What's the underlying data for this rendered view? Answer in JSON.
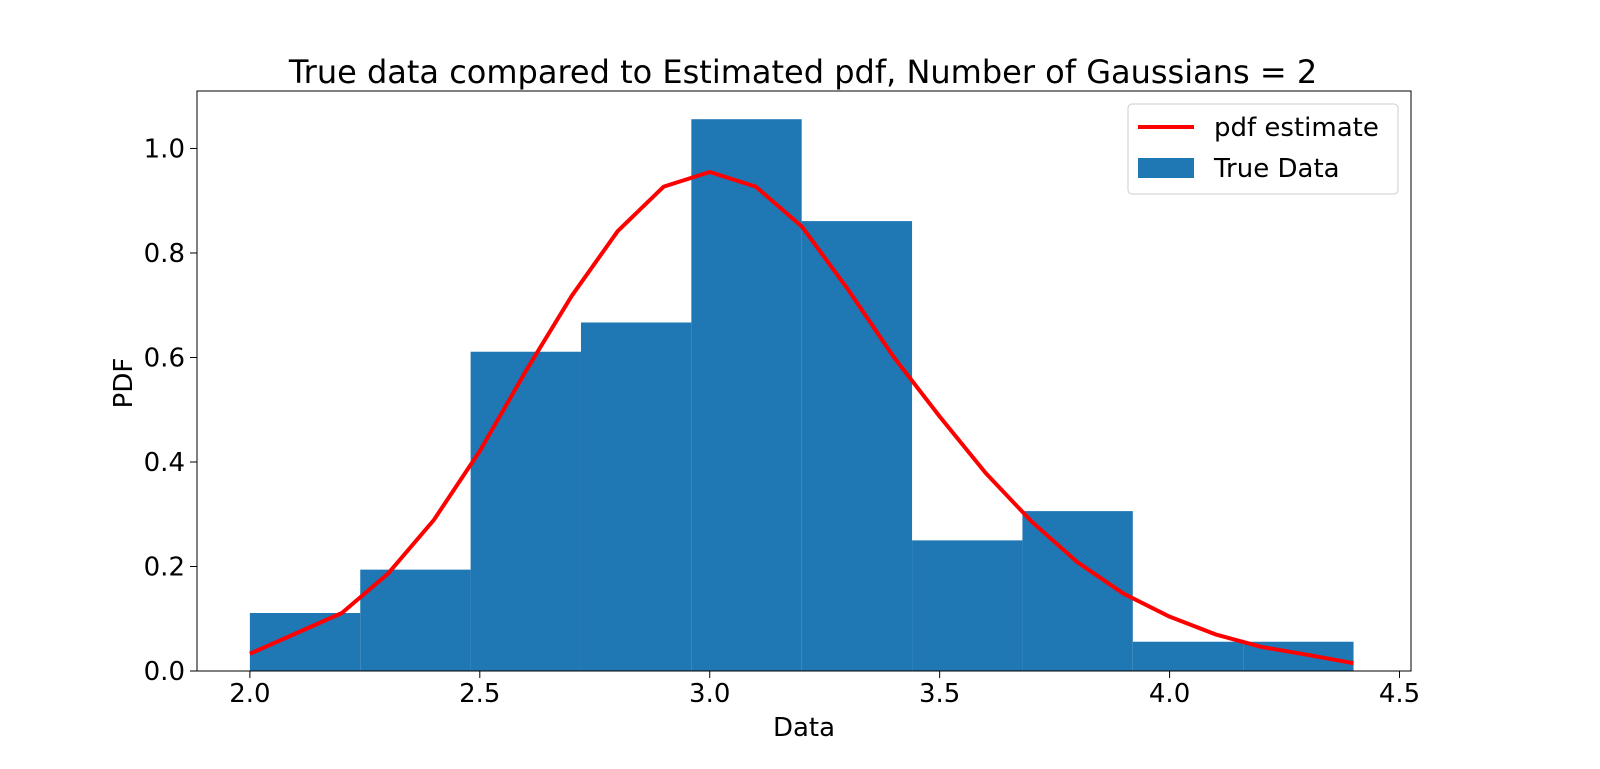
{
  "chart_data": {
    "type": "bar",
    "title": "True data compared to Estimated pdf, Number of Gaussians = 2",
    "xlabel": "Data",
    "ylabel": "PDF",
    "xlim": [
      1.885,
      4.525
    ],
    "ylim": [
      0.0,
      1.11
    ],
    "xticks": [
      2.0,
      2.5,
      3.0,
      3.5,
      4.0,
      4.5
    ],
    "xtick_labels": [
      "2.0",
      "2.5",
      "3.0",
      "3.5",
      "4.0",
      "4.5"
    ],
    "yticks": [
      0.0,
      0.2,
      0.4,
      0.6,
      0.8,
      1.0
    ],
    "ytick_labels": [
      "0.0",
      "0.2",
      "0.4",
      "0.6",
      "0.8",
      "1.0"
    ],
    "grid": false,
    "legend_position": "top-right",
    "histogram": {
      "name": "True Data",
      "color": "#1f77b4",
      "bin_edges": [
        2.0,
        2.24,
        2.48,
        2.72,
        2.96,
        3.2,
        3.44,
        3.68,
        3.92,
        4.16,
        4.4
      ],
      "values": [
        0.111,
        0.194,
        0.611,
        0.667,
        1.056,
        0.861,
        0.25,
        0.306,
        0.056,
        0.056
      ]
    },
    "series": [
      {
        "name": "pdf estimate",
        "type": "line",
        "color": "#ff0000",
        "x": [
          2.0,
          2.1,
          2.2,
          2.3,
          2.4,
          2.5,
          2.6,
          2.7,
          2.8,
          2.9,
          3.0,
          3.1,
          3.2,
          3.3,
          3.4,
          3.5,
          3.6,
          3.7,
          3.8,
          3.9,
          4.0,
          4.1,
          4.2,
          4.3,
          4.4
        ],
        "y": [
          0.033,
          0.072,
          0.111,
          0.186,
          0.289,
          0.421,
          0.574,
          0.718,
          0.842,
          0.927,
          0.955,
          0.927,
          0.851,
          0.731,
          0.601,
          0.487,
          0.379,
          0.286,
          0.208,
          0.148,
          0.104,
          0.07,
          0.046,
          0.031,
          0.015
        ]
      }
    ]
  }
}
